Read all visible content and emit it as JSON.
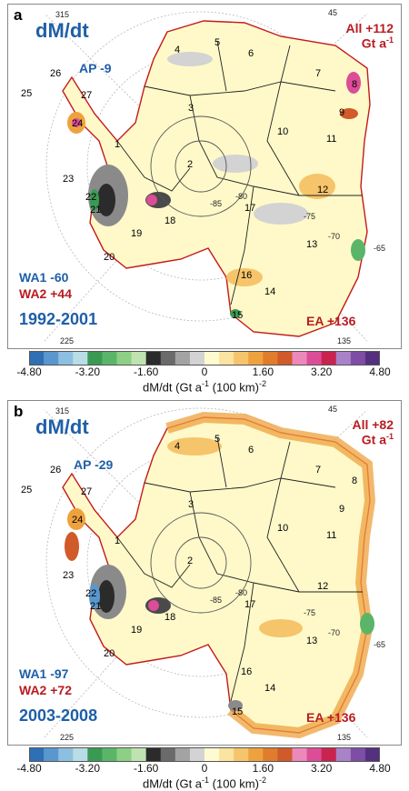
{
  "panels": [
    {
      "letter": "a",
      "title": "dM/dt",
      "period": "1992-2001",
      "deg_315": "315",
      "deg_45": "45",
      "deg_225": "225",
      "deg_135": "135",
      "total_line1": "All +112",
      "total_line2": "Gt a",
      "total_exp": "-1",
      "ap": "AP -9",
      "wa1": "WA1 -60",
      "wa2": "WA2 +44",
      "ea": "EA +136",
      "contour_85": "-85",
      "contour_80": "-80",
      "contour_75": "-75",
      "contour_70": "-70",
      "contour_65": "-65"
    },
    {
      "letter": "b",
      "title": "dM/dt",
      "period": "2003-2008",
      "deg_315": "315",
      "deg_45": "45",
      "deg_225": "225",
      "deg_135": "135",
      "total_line1": "All +82",
      "total_line2": "Gt a",
      "total_exp": "-1",
      "ap": "AP -29",
      "wa1": "WA1 -97",
      "wa2": "WA2 +72",
      "ea": "EA +136",
      "contour_85": "-85",
      "contour_80": "-80",
      "contour_75": "-75",
      "contour_70": "-70",
      "contour_65": "-65"
    }
  ],
  "basins": [
    "1",
    "2",
    "3",
    "4",
    "5",
    "6",
    "7",
    "8",
    "9",
    "10",
    "11",
    "12",
    "13",
    "14",
    "15",
    "16",
    "17",
    "18",
    "19",
    "20",
    "21",
    "22",
    "23",
    "24",
    "25",
    "26",
    "27"
  ],
  "colorbar": {
    "ticks": [
      "-4.80",
      "-3.20",
      "-1.60",
      "0",
      "1.60",
      "3.20",
      "4.80"
    ],
    "label": "dM/dt (Gt a",
    "label_exp": "-1",
    "label_tail": " (100 km)",
    "label_tail_exp": "-2",
    "colors": [
      "#2f6fb5",
      "#5a97cf",
      "#8cbfe0",
      "#b8dde6",
      "#3a9a53",
      "#5bb568",
      "#8ccf85",
      "#bfe3b0",
      "#2b2b2b",
      "#6a6a6a",
      "#a3a3a3",
      "#d3d3d3",
      "#fffbd0",
      "#fbe3a0",
      "#f6c46a",
      "#eea23e",
      "#e07c2c",
      "#d05a2a",
      "#ec89ba",
      "#dc4d97",
      "#c8244f",
      "#a983c8",
      "#7e4da6",
      "#55307f"
    ]
  }
}
